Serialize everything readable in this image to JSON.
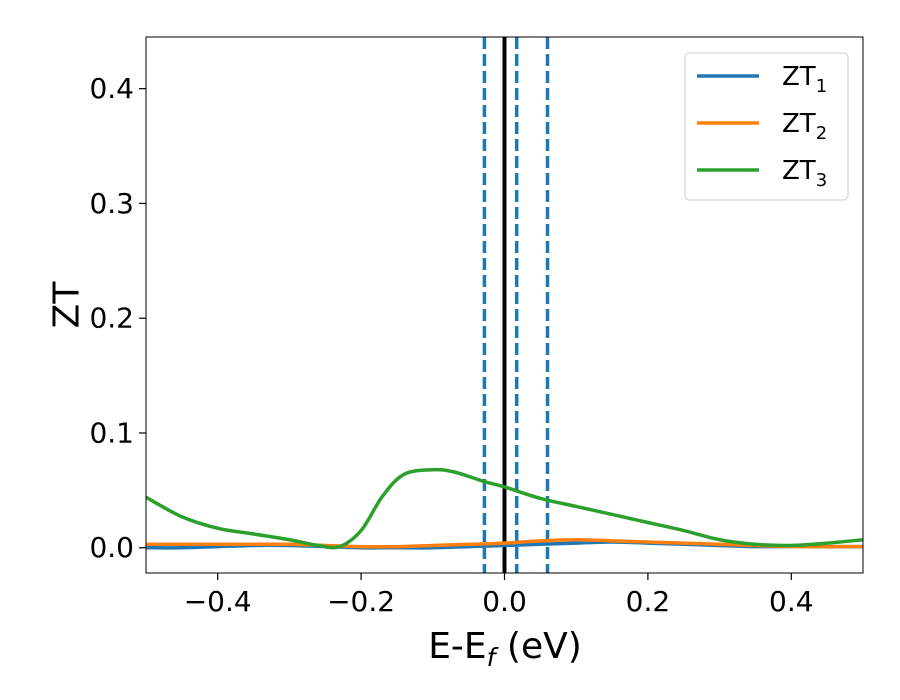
{
  "chart_data": {
    "type": "line",
    "title": "",
    "xlabel": "E-E",
    "xlabel_sub": "f",
    "xlabel_unit": " (eV)",
    "ylabel": "ZT",
    "xlim": [
      -0.5,
      0.5
    ],
    "ylim": [
      -0.022,
      0.445
    ],
    "x_ticks": [
      -0.4,
      -0.2,
      0.0,
      0.2,
      0.4
    ],
    "x_tick_labels": [
      "−0.4",
      "−0.2",
      "0.0",
      "0.2",
      "0.4"
    ],
    "y_ticks": [
      0.0,
      0.1,
      0.2,
      0.3,
      0.4
    ],
    "y_tick_labels": [
      "0.0",
      "0.1",
      "0.2",
      "0.3",
      "0.4"
    ],
    "grid": false,
    "legend_position": "top-right",
    "vertical_lines": [
      {
        "x": 0.0,
        "style": "solid",
        "color": "#000000"
      },
      {
        "x": -0.028,
        "style": "dashed",
        "color": "#1f77b4"
      },
      {
        "x": 0.017,
        "style": "dashed",
        "color": "#1f77b4"
      },
      {
        "x": 0.06,
        "style": "dashed",
        "color": "#1f77b4"
      }
    ],
    "series": [
      {
        "name": "ZT",
        "name_sub": "1",
        "color": "#1f77b4",
        "x": [
          -0.5,
          -0.45,
          -0.4,
          -0.35,
          -0.3,
          -0.25,
          -0.2,
          -0.15,
          -0.1,
          -0.05,
          0.0,
          0.05,
          0.1,
          0.15,
          0.2,
          0.25,
          0.3,
          0.35,
          0.4,
          0.45,
          0.5
        ],
        "y": [
          0.0,
          0.0,
          0.001,
          0.002,
          0.002,
          0.001,
          0.0,
          0.0,
          0.0,
          0.001,
          0.002,
          0.003,
          0.004,
          0.005,
          0.004,
          0.003,
          0.002,
          0.001,
          0.001,
          0.001,
          0.001
        ]
      },
      {
        "name": "ZT",
        "name_sub": "2",
        "color": "#ff7f0e",
        "x": [
          -0.5,
          -0.45,
          -0.4,
          -0.35,
          -0.3,
          -0.25,
          -0.2,
          -0.15,
          -0.1,
          -0.05,
          0.0,
          0.05,
          0.1,
          0.15,
          0.2,
          0.25,
          0.3,
          0.35,
          0.4,
          0.45,
          0.5
        ],
        "y": [
          0.003,
          0.003,
          0.003,
          0.003,
          0.003,
          0.002,
          0.001,
          0.001,
          0.002,
          0.003,
          0.004,
          0.006,
          0.007,
          0.006,
          0.005,
          0.004,
          0.003,
          0.002,
          0.001,
          0.001,
          0.001
        ]
      },
      {
        "name": "ZT",
        "name_sub": "3",
        "color": "#2ca02c",
        "x": [
          -0.5,
          -0.45,
          -0.4,
          -0.35,
          -0.3,
          -0.26,
          -0.23,
          -0.2,
          -0.17,
          -0.14,
          -0.1,
          -0.07,
          -0.03,
          0.0,
          0.05,
          0.1,
          0.15,
          0.2,
          0.25,
          0.3,
          0.35,
          0.4,
          0.45,
          0.5
        ],
        "y": [
          0.044,
          0.027,
          0.017,
          0.012,
          0.007,
          0.002,
          0.001,
          0.015,
          0.045,
          0.064,
          0.068,
          0.066,
          0.058,
          0.053,
          0.043,
          0.036,
          0.029,
          0.022,
          0.015,
          0.007,
          0.003,
          0.002,
          0.004,
          0.007
        ]
      }
    ]
  }
}
